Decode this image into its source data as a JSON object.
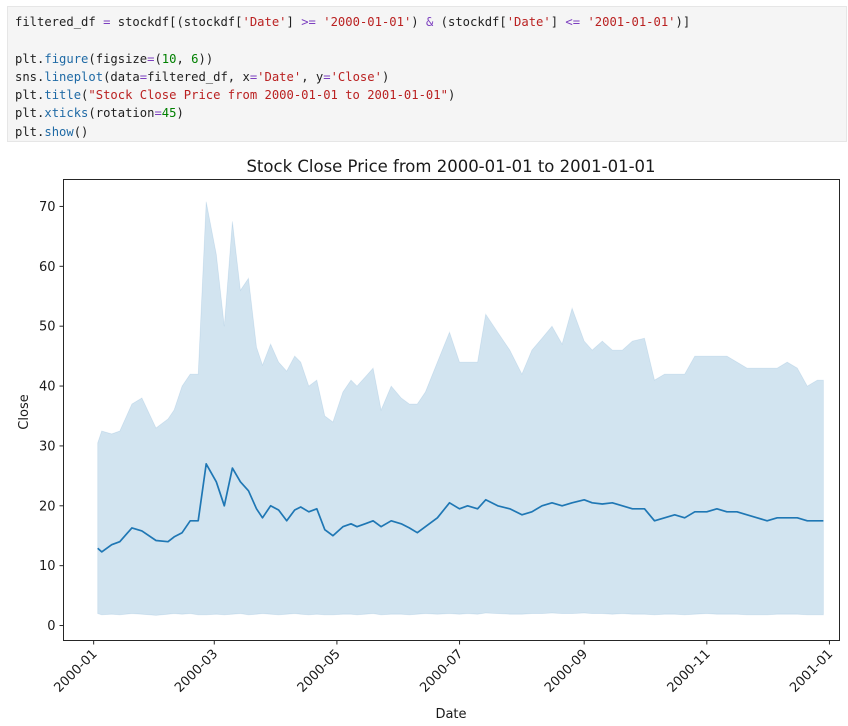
{
  "code_cell": {
    "lines": [
      [
        {
          "t": "filtered_df "
        },
        {
          "t": "=",
          "c": "op"
        },
        {
          "t": " stockdf[(stockdf["
        },
        {
          "t": "'Date'",
          "c": "str"
        },
        {
          "t": "] "
        },
        {
          "t": ">=",
          "c": "op"
        },
        {
          "t": " "
        },
        {
          "t": "'2000-01-01'",
          "c": "str"
        },
        {
          "t": ") "
        },
        {
          "t": "&",
          "c": "op"
        },
        {
          "t": " (stockdf["
        },
        {
          "t": "'Date'",
          "c": "str"
        },
        {
          "t": "] "
        },
        {
          "t": "<=",
          "c": "op"
        },
        {
          "t": " "
        },
        {
          "t": "'2001-01-01'",
          "c": "str"
        },
        {
          "t": ")]"
        }
      ],
      [],
      [
        {
          "t": "plt."
        },
        {
          "t": "figure",
          "c": "fn"
        },
        {
          "t": "(figsize"
        },
        {
          "t": "=",
          "c": "op"
        },
        {
          "t": "("
        },
        {
          "t": "10",
          "c": "num"
        },
        {
          "t": ", "
        },
        {
          "t": "6",
          "c": "num"
        },
        {
          "t": "))"
        }
      ],
      [
        {
          "t": "sns."
        },
        {
          "t": "lineplot",
          "c": "fn"
        },
        {
          "t": "(data"
        },
        {
          "t": "=",
          "c": "op"
        },
        {
          "t": "filtered_df, x"
        },
        {
          "t": "=",
          "c": "op"
        },
        {
          "t": "'Date'",
          "c": "str"
        },
        {
          "t": ", y"
        },
        {
          "t": "=",
          "c": "op"
        },
        {
          "t": "'Close'",
          "c": "str"
        },
        {
          "t": ")"
        }
      ],
      [
        {
          "t": "plt."
        },
        {
          "t": "title",
          "c": "fn"
        },
        {
          "t": "("
        },
        {
          "t": "\"Stock Close Price from 2000-01-01 to 2001-01-01\"",
          "c": "str"
        },
        {
          "t": ")"
        }
      ],
      [
        {
          "t": "plt."
        },
        {
          "t": "xticks",
          "c": "fn"
        },
        {
          "t": "(rotation"
        },
        {
          "t": "=",
          "c": "op"
        },
        {
          "t": "45",
          "c": "num"
        },
        {
          "t": ")"
        }
      ],
      [
        {
          "t": "plt."
        },
        {
          "t": "show",
          "c": "fn"
        },
        {
          "t": "()"
        }
      ]
    ]
  },
  "chart_data": {
    "type": "line",
    "title": "Stock Close Price from 2000-01-01 to 2001-01-01",
    "xlabel": "Date",
    "ylabel": "Close",
    "xlim": [
      "1999-12-17",
      "2001-01-06"
    ],
    "ylim": [
      -2.5,
      74.5
    ],
    "grid": false,
    "legend": "none",
    "x_ticks": [
      "2000-01",
      "2000-03",
      "2000-05",
      "2000-07",
      "2000-09",
      "2000-11",
      "2001-01"
    ],
    "y_ticks": [
      0,
      10,
      20,
      30,
      40,
      50,
      60,
      70
    ],
    "colors": {
      "line": "#1f77b4",
      "band": "#1f77b4"
    },
    "series": [
      {
        "x": [
          "2000-01-03",
          "2000-01-05",
          "2000-01-10",
          "2000-01-14",
          "2000-01-20",
          "2000-01-25",
          "2000-02-01",
          "2000-02-07",
          "2000-02-10",
          "2000-02-14",
          "2000-02-18",
          "2000-02-22",
          "2000-02-26",
          "2000-03-02",
          "2000-03-06",
          "2000-03-10",
          "2000-03-14",
          "2000-03-18",
          "2000-03-22",
          "2000-03-25",
          "2000-03-29",
          "2000-04-02",
          "2000-04-06",
          "2000-04-10",
          "2000-04-13",
          "2000-04-17",
          "2000-04-21",
          "2000-04-25",
          "2000-04-29",
          "2000-05-04",
          "2000-05-08",
          "2000-05-11",
          "2000-05-15",
          "2000-05-19",
          "2000-05-23",
          "2000-05-28",
          "2000-06-02",
          "2000-06-06",
          "2000-06-10",
          "2000-06-14",
          "2000-06-20",
          "2000-06-26",
          "2000-07-01",
          "2000-07-05",
          "2000-07-10",
          "2000-07-14",
          "2000-07-20",
          "2000-07-26",
          "2000-08-01",
          "2000-08-06",
          "2000-08-11",
          "2000-08-16",
          "2000-08-21",
          "2000-08-26",
          "2000-09-01",
          "2000-09-05",
          "2000-09-10",
          "2000-09-15",
          "2000-09-20",
          "2000-09-25",
          "2000-10-01",
          "2000-10-06",
          "2000-10-11",
          "2000-10-16",
          "2000-10-21",
          "2000-10-26",
          "2000-11-01",
          "2000-11-06",
          "2000-11-11",
          "2000-11-16",
          "2000-11-21",
          "2000-11-26",
          "2000-12-01",
          "2000-12-06",
          "2000-12-11",
          "2000-12-16",
          "2000-12-21",
          "2000-12-26",
          "2000-12-29"
        ],
        "mean": [
          12.9,
          12.3,
          13.5,
          14.0,
          16.3,
          15.8,
          14.2,
          14.0,
          14.8,
          15.5,
          17.5,
          17.5,
          27.0,
          24.0,
          20.0,
          26.3,
          24.0,
          22.5,
          19.5,
          18.0,
          20.0,
          19.3,
          17.5,
          19.3,
          19.8,
          19.0,
          19.5,
          16.0,
          15.0,
          16.5,
          17.0,
          16.5,
          17.0,
          17.5,
          16.5,
          17.5,
          17.0,
          16.3,
          15.5,
          16.5,
          18.0,
          20.5,
          19.5,
          20.0,
          19.5,
          21.0,
          20.0,
          19.5,
          18.5,
          19.0,
          20.0,
          20.5,
          20.0,
          20.5,
          21.0,
          20.5,
          20.3,
          20.5,
          20.0,
          19.5,
          19.5,
          17.5,
          18.0,
          18.5,
          18.0,
          19.0,
          19.0,
          19.5,
          19.0,
          19.0,
          18.5,
          18.0,
          17.5,
          18.0,
          18.0,
          18.0,
          17.5,
          17.5,
          17.5
        ],
        "ci_upper": [
          30.5,
          32.5,
          32.0,
          32.5,
          37.0,
          38.0,
          33.0,
          34.5,
          36.0,
          40.0,
          42.0,
          42.0,
          70.8,
          62.0,
          50.0,
          67.5,
          56.0,
          58.0,
          46.5,
          43.5,
          47.0,
          44.0,
          42.5,
          45.0,
          44.0,
          40.0,
          41.0,
          35.0,
          34.0,
          39.0,
          41.0,
          40.0,
          41.5,
          43.0,
          36.0,
          40.0,
          38.0,
          37.0,
          37.0,
          39.0,
          44.0,
          49.0,
          44.0,
          44.0,
          44.0,
          52.0,
          49.0,
          46.0,
          42.0,
          46.0,
          48.0,
          50.0,
          47.0,
          53.0,
          47.5,
          46.0,
          47.5,
          46.0,
          46.0,
          47.5,
          48.0,
          41.0,
          42.0,
          42.0,
          42.0,
          45.0,
          45.0,
          45.0,
          45.0,
          44.0,
          43.0,
          43.0,
          43.0,
          43.0,
          44.0,
          43.0,
          40.0,
          41.0,
          41.0
        ],
        "ci_lower": [
          2.0,
          1.8,
          1.9,
          1.8,
          2.0,
          1.9,
          1.7,
          1.9,
          2.0,
          1.9,
          2.0,
          1.8,
          1.8,
          1.9,
          1.8,
          1.9,
          2.0,
          1.8,
          1.9,
          2.0,
          1.9,
          1.8,
          1.9,
          2.0,
          1.9,
          1.8,
          1.9,
          1.8,
          1.8,
          1.9,
          1.9,
          1.8,
          1.9,
          2.0,
          1.8,
          1.9,
          1.9,
          1.8,
          1.9,
          2.0,
          1.9,
          2.0,
          1.9,
          2.0,
          1.9,
          2.1,
          2.0,
          1.9,
          1.9,
          2.0,
          2.0,
          2.1,
          2.0,
          2.0,
          2.1,
          2.0,
          2.0,
          1.9,
          2.0,
          1.9,
          1.9,
          1.8,
          1.9,
          1.9,
          1.8,
          1.9,
          2.0,
          1.9,
          1.9,
          1.9,
          1.8,
          1.8,
          1.8,
          1.9,
          1.9,
          1.9,
          1.8,
          1.8,
          1.8
        ]
      }
    ]
  }
}
